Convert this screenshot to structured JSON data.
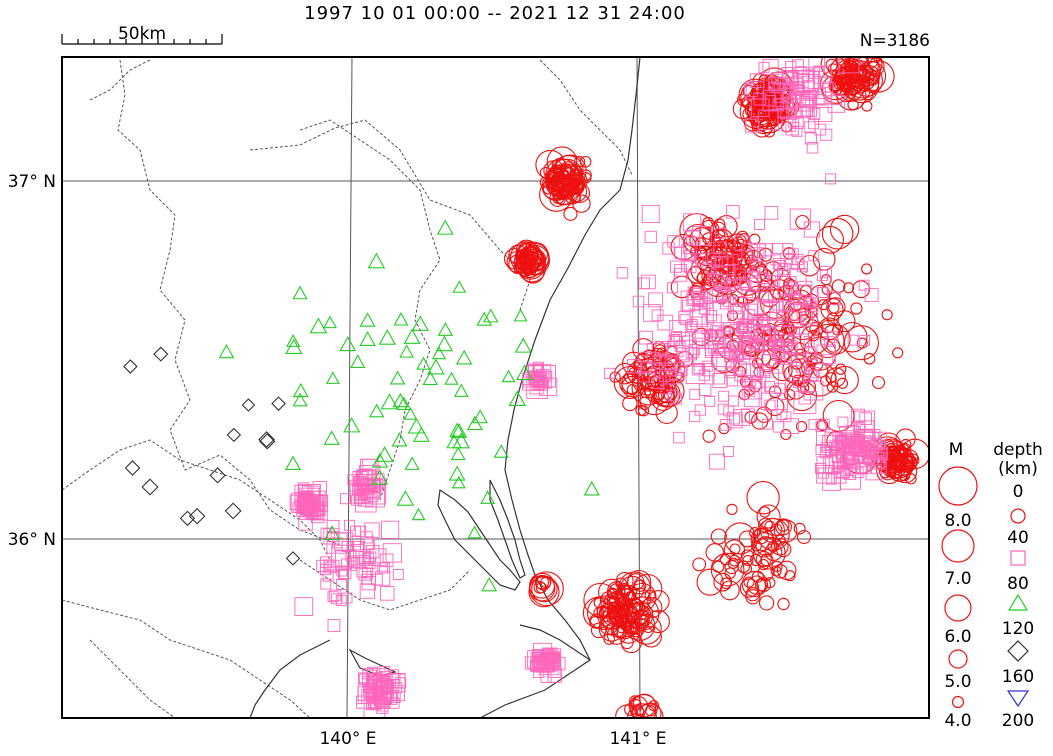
{
  "title": "1997 10 01 00:00 -- 2021 12 31 24:00",
  "count_label": "N=3186",
  "scale_label": "50km",
  "lat_labels": [
    {
      "name": "lat-37",
      "text": "37° N"
    },
    {
      "name": "lat-36",
      "text": "36° N"
    }
  ],
  "lon_labels": [
    {
      "name": "lon-140",
      "text": "140° E"
    },
    {
      "name": "lon-141",
      "text": "141° E"
    }
  ],
  "legend": {
    "magnitude_title": "M",
    "depth_title_line1": "depth",
    "depth_title_line2": "(km)",
    "magnitudes": [
      "8.0",
      "7.0",
      "6.0",
      "5.0",
      "4.0"
    ],
    "depths": [
      "0",
      "40",
      "80",
      "120",
      "160",
      "200"
    ]
  },
  "colors": {
    "depth_0_40": "#ee1111",
    "depth_40_80": "#ff66bb",
    "depth_80_120": "#22cc22",
    "depth_120_160": "#333333",
    "depth_160_200": "#3333cc",
    "coast": "#333333",
    "border": "#555555",
    "grid": "#555555",
    "frame": "#000000"
  },
  "symbols": {
    "depth_0_40": "circle",
    "depth_40_80": "square",
    "depth_80_120": "triangle",
    "depth_120_160": "diamond",
    "depth_160_200": "inverted-triangle"
  },
  "clusters": [
    {
      "name": "cluster-fukushima-inland-north",
      "type": "circle",
      "lon": 140.75,
      "lat": 37.0,
      "count": 90,
      "spread": 0.07
    },
    {
      "name": "cluster-fukushima-coast",
      "type": "circle",
      "lon": 140.62,
      "lat": 36.78,
      "count": 55,
      "spread": 0.04
    },
    {
      "name": "cluster-offshore-ne",
      "type": "circle",
      "lon": 141.45,
      "lat": 37.22,
      "count": 110,
      "spread": 0.07
    },
    {
      "name": "cluster-offshore-far-ne",
      "type": "circle",
      "lon": 141.75,
      "lat": 37.3,
      "count": 90,
      "spread": 0.08
    },
    {
      "name": "cluster-offshore-east",
      "type": "circle",
      "lon": 141.9,
      "lat": 36.22,
      "count": 70,
      "spread": 0.05
    },
    {
      "name": "cluster-ibaraki-coast",
      "type": "circle",
      "lon": 140.95,
      "lat": 35.8,
      "count": 110,
      "spread": 0.09
    },
    {
      "name": "cluster-offshore-band-1",
      "type": "circle",
      "lon": 141.3,
      "lat": 36.8,
      "count": 90,
      "spread": 0.12
    },
    {
      "name": "cluster-offshore-band-2",
      "type": "circle",
      "lon": 141.05,
      "lat": 36.45,
      "count": 70,
      "spread": 0.1
    },
    {
      "name": "cluster-offshore-south",
      "type": "circle",
      "lon": 141.4,
      "lat": 35.95,
      "count": 70,
      "spread": 0.15
    },
    {
      "name": "cluster-offshore-scatter",
      "type": "circle",
      "lon": 141.55,
      "lat": 36.55,
      "count": 160,
      "spread": 0.3
    },
    {
      "name": "cluster-mito-east",
      "type": "circle",
      "lon": 140.67,
      "lat": 35.87,
      "count": 10,
      "spread": 0.02
    },
    {
      "name": "cluster-choshi-south",
      "type": "circle",
      "lon": 141.0,
      "lat": 35.5,
      "count": 25,
      "spread": 0.06
    },
    {
      "name": "cluster-ibaraki-southwest",
      "type": "square",
      "lon": 139.85,
      "lat": 36.1,
      "count": 70,
      "spread": 0.04
    },
    {
      "name": "cluster-ibaraki-central",
      "type": "square",
      "lon": 140.05,
      "lat": 36.15,
      "count": 45,
      "spread": 0.05
    },
    {
      "name": "cluster-kasumigaura-south",
      "type": "square",
      "lon": 140.1,
      "lat": 35.58,
      "count": 75,
      "spread": 0.06
    },
    {
      "name": "cluster-choshi-west",
      "type": "square",
      "lon": 140.68,
      "lat": 35.66,
      "count": 45,
      "spread": 0.04
    },
    {
      "name": "cluster-kashima-offshore",
      "type": "square",
      "lon": 140.65,
      "lat": 36.45,
      "count": 30,
      "spread": 0.03
    },
    {
      "name": "cluster-offshore-east-deep",
      "type": "square",
      "lon": 141.75,
      "lat": 36.25,
      "count": 110,
      "spread": 0.1
    },
    {
      "name": "cluster-offshore-scatter-deep",
      "type": "square",
      "lon": 141.35,
      "lat": 36.6,
      "count": 320,
      "spread": 0.35
    },
    {
      "name": "cluster-offshore-north-deep",
      "type": "square",
      "lon": 141.55,
      "lat": 37.25,
      "count": 90,
      "spread": 0.14
    },
    {
      "name": "cluster-tochigi-deep",
      "type": "square",
      "lon": 140.0,
      "lat": 35.95,
      "count": 70,
      "spread": 0.15
    },
    {
      "name": "cluster-intermediate",
      "type": "triangle",
      "lon": 140.2,
      "lat": 36.4,
      "count": 70,
      "spread": 0.45
    },
    {
      "name": "cluster-deep-inland",
      "type": "diamond",
      "lon": 139.5,
      "lat": 36.2,
      "count": 14,
      "spread": 0.35
    }
  ]
}
